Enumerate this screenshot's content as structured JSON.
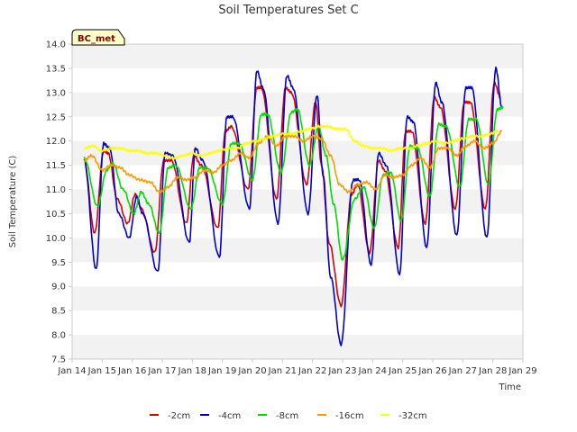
{
  "chart_data": {
    "type": "line",
    "title": "Soil Temperatures Set C",
    "xlabel": "Time",
    "ylabel": "Soil Temperature (C)",
    "ylim": [
      7.5,
      14.0
    ],
    "yticks": [
      7.5,
      8.0,
      8.5,
      9.0,
      9.5,
      10.0,
      10.5,
      11.0,
      11.5,
      12.0,
      12.5,
      13.0,
      13.5,
      14.0
    ],
    "ytick_labels": [
      "7.5",
      "8.0",
      "8.5",
      "9.0",
      "9.5",
      "10.0",
      "10.5",
      "11.0",
      "11.5",
      "12.0",
      "12.5",
      "13.0",
      "13.5",
      "14.0"
    ],
    "xlim": [
      14,
      29
    ],
    "xticks": [
      14,
      15,
      16,
      17,
      18,
      19,
      20,
      21,
      22,
      23,
      24,
      25,
      26,
      27,
      28,
      29
    ],
    "xtick_labels": [
      "Jan 14",
      "Jan 15",
      "Jan 16",
      "Jan 17",
      "Jan 18",
      "Jan 19",
      "Jan 20",
      "Jan 21",
      "Jan 22",
      "Jan 23",
      "Jan 24",
      "Jan 25",
      "Jan 26",
      "Jan 27",
      "Jan 28",
      "Jan 29"
    ],
    "grid": "horizontal bands",
    "legend_position": "bottom",
    "station_label": "BC_met",
    "series": [
      {
        "name": "-2cm",
        "color": "#dd0000",
        "points": [
          [
            14.4,
            11.6
          ],
          [
            14.75,
            10.1
          ],
          [
            15.05,
            11.8
          ],
          [
            15.2,
            11.75
          ],
          [
            15.5,
            10.8
          ],
          [
            15.85,
            10.3
          ],
          [
            16.1,
            10.9
          ],
          [
            16.3,
            10.6
          ],
          [
            16.75,
            9.7
          ],
          [
            17.05,
            11.6
          ],
          [
            17.3,
            11.6
          ],
          [
            17.8,
            10.3
          ],
          [
            18.05,
            11.7
          ],
          [
            18.3,
            11.5
          ],
          [
            18.85,
            10.2
          ],
          [
            19.1,
            12.2
          ],
          [
            19.3,
            12.3
          ],
          [
            19.85,
            11.0
          ],
          [
            20.15,
            13.1
          ],
          [
            20.3,
            13.1
          ],
          [
            20.8,
            10.8
          ],
          [
            21.1,
            13.1
          ],
          [
            21.3,
            13.0
          ],
          [
            21.8,
            11.1
          ],
          [
            22.1,
            12.8
          ],
          [
            22.3,
            11.5
          ],
          [
            22.55,
            9.9
          ],
          [
            22.95,
            8.6
          ],
          [
            23.3,
            10.9
          ],
          [
            23.5,
            11.1
          ],
          [
            23.9,
            9.7
          ],
          [
            24.2,
            11.6
          ],
          [
            24.4,
            11.4
          ],
          [
            24.85,
            9.8
          ],
          [
            25.1,
            12.2
          ],
          [
            25.3,
            12.2
          ],
          [
            25.75,
            10.3
          ],
          [
            26.05,
            12.9
          ],
          [
            26.25,
            12.7
          ],
          [
            26.75,
            10.6
          ],
          [
            27.05,
            12.8
          ],
          [
            27.25,
            12.8
          ],
          [
            27.75,
            10.6
          ],
          [
            28.05,
            13.2
          ],
          [
            28.25,
            12.9
          ]
        ]
      },
      {
        "name": "-4cm",
        "color": "#0000cc",
        "points": [
          [
            14.4,
            11.6
          ],
          [
            14.8,
            9.35
          ],
          [
            15.05,
            11.95
          ],
          [
            15.25,
            11.85
          ],
          [
            15.55,
            10.5
          ],
          [
            15.9,
            10.0
          ],
          [
            16.15,
            10.85
          ],
          [
            16.35,
            10.5
          ],
          [
            16.85,
            9.3
          ],
          [
            17.1,
            11.75
          ],
          [
            17.35,
            11.7
          ],
          [
            17.9,
            9.9
          ],
          [
            18.1,
            11.85
          ],
          [
            18.35,
            11.6
          ],
          [
            18.9,
            9.6
          ],
          [
            19.15,
            12.5
          ],
          [
            19.35,
            12.5
          ],
          [
            19.9,
            10.6
          ],
          [
            20.15,
            13.45
          ],
          [
            20.35,
            13.1
          ],
          [
            20.85,
            10.3
          ],
          [
            21.15,
            13.35
          ],
          [
            21.35,
            13.1
          ],
          [
            21.85,
            10.5
          ],
          [
            22.15,
            12.95
          ],
          [
            22.35,
            11.3
          ],
          [
            22.6,
            9.2
          ],
          [
            22.95,
            7.8
          ],
          [
            23.35,
            11.2
          ],
          [
            23.55,
            11.2
          ],
          [
            23.95,
            9.45
          ],
          [
            24.2,
            11.75
          ],
          [
            24.45,
            11.5
          ],
          [
            24.9,
            9.25
          ],
          [
            25.15,
            12.5
          ],
          [
            25.35,
            12.4
          ],
          [
            25.8,
            9.8
          ],
          [
            26.1,
            13.2
          ],
          [
            26.3,
            12.8
          ],
          [
            26.8,
            10.05
          ],
          [
            27.1,
            13.1
          ],
          [
            27.3,
            13.1
          ],
          [
            27.8,
            10.0
          ],
          [
            28.1,
            13.5
          ],
          [
            28.3,
            12.7
          ]
        ]
      },
      {
        "name": "-8cm",
        "color": "#00dd00",
        "points": [
          [
            14.4,
            11.65
          ],
          [
            14.85,
            10.65
          ],
          [
            15.15,
            11.4
          ],
          [
            15.35,
            11.55
          ],
          [
            15.7,
            11.0
          ],
          [
            16.05,
            10.5
          ],
          [
            16.3,
            10.95
          ],
          [
            16.55,
            10.7
          ],
          [
            16.9,
            10.1
          ],
          [
            17.2,
            11.45
          ],
          [
            17.45,
            11.5
          ],
          [
            17.95,
            10.6
          ],
          [
            18.25,
            11.45
          ],
          [
            18.5,
            11.45
          ],
          [
            19.0,
            10.7
          ],
          [
            19.3,
            11.95
          ],
          [
            19.55,
            11.95
          ],
          [
            20.0,
            11.2
          ],
          [
            20.3,
            12.55
          ],
          [
            20.5,
            12.55
          ],
          [
            20.95,
            11.35
          ],
          [
            21.3,
            12.6
          ],
          [
            21.5,
            12.65
          ],
          [
            21.9,
            11.5
          ],
          [
            22.2,
            12.3
          ],
          [
            22.45,
            11.7
          ],
          [
            22.7,
            10.7
          ],
          [
            23.0,
            9.55
          ],
          [
            23.4,
            10.8
          ],
          [
            23.7,
            11.05
          ],
          [
            24.05,
            10.2
          ],
          [
            24.35,
            11.3
          ],
          [
            24.6,
            11.35
          ],
          [
            24.95,
            10.35
          ],
          [
            25.25,
            11.9
          ],
          [
            25.5,
            11.85
          ],
          [
            25.9,
            10.85
          ],
          [
            26.2,
            12.35
          ],
          [
            26.45,
            12.3
          ],
          [
            26.9,
            11.05
          ],
          [
            27.2,
            12.45
          ],
          [
            27.45,
            12.45
          ],
          [
            27.85,
            11.1
          ],
          [
            28.15,
            12.65
          ],
          [
            28.35,
            12.7
          ]
        ]
      },
      {
        "name": "-16cm",
        "color": "#ff9900",
        "points": [
          [
            14.4,
            11.6
          ],
          [
            14.65,
            11.7
          ],
          [
            15.0,
            11.4
          ],
          [
            15.3,
            11.5
          ],
          [
            15.6,
            11.45
          ],
          [
            15.9,
            11.3
          ],
          [
            16.25,
            11.2
          ],
          [
            16.6,
            11.15
          ],
          [
            16.9,
            10.95
          ],
          [
            17.2,
            11.05
          ],
          [
            17.5,
            11.25
          ],
          [
            17.8,
            11.2
          ],
          [
            18.1,
            11.25
          ],
          [
            18.4,
            11.4
          ],
          [
            18.7,
            11.35
          ],
          [
            19.0,
            11.5
          ],
          [
            19.3,
            11.6
          ],
          [
            19.6,
            11.75
          ],
          [
            19.9,
            11.65
          ],
          [
            20.2,
            11.95
          ],
          [
            20.5,
            12.1
          ],
          [
            20.8,
            11.9
          ],
          [
            21.1,
            12.1
          ],
          [
            21.4,
            12.1
          ],
          [
            21.7,
            12.0
          ],
          [
            22.0,
            12.1
          ],
          [
            22.3,
            12.05
          ],
          [
            22.6,
            11.7
          ],
          [
            22.9,
            11.1
          ],
          [
            23.2,
            10.95
          ],
          [
            23.5,
            11.1
          ],
          [
            23.8,
            11.15
          ],
          [
            24.1,
            11.0
          ],
          [
            24.4,
            11.3
          ],
          [
            24.7,
            11.25
          ],
          [
            25.0,
            11.3
          ],
          [
            25.3,
            11.5
          ],
          [
            25.6,
            11.65
          ],
          [
            25.9,
            11.45
          ],
          [
            26.2,
            11.85
          ],
          [
            26.5,
            11.85
          ],
          [
            26.8,
            11.7
          ],
          [
            27.1,
            11.9
          ],
          [
            27.4,
            12.0
          ],
          [
            27.7,
            11.85
          ],
          [
            28.0,
            11.95
          ],
          [
            28.3,
            12.2
          ]
        ]
      },
      {
        "name": "-32cm",
        "color": "#ffff00",
        "points": [
          [
            14.4,
            11.85
          ],
          [
            14.7,
            11.9
          ],
          [
            15.0,
            11.8
          ],
          [
            15.3,
            11.85
          ],
          [
            15.6,
            11.85
          ],
          [
            15.9,
            11.8
          ],
          [
            16.2,
            11.8
          ],
          [
            16.5,
            11.75
          ],
          [
            16.8,
            11.75
          ],
          [
            17.1,
            11.7
          ],
          [
            17.4,
            11.65
          ],
          [
            17.7,
            11.7
          ],
          [
            18.0,
            11.75
          ],
          [
            18.3,
            11.7
          ],
          [
            18.6,
            11.75
          ],
          [
            18.9,
            11.8
          ],
          [
            19.2,
            11.85
          ],
          [
            19.5,
            11.85
          ],
          [
            19.8,
            11.95
          ],
          [
            20.1,
            12.0
          ],
          [
            20.4,
            12.05
          ],
          [
            20.7,
            12.1
          ],
          [
            21.0,
            12.15
          ],
          [
            21.3,
            12.15
          ],
          [
            21.6,
            12.2
          ],
          [
            21.9,
            12.25
          ],
          [
            22.2,
            12.3
          ],
          [
            22.5,
            12.3
          ],
          [
            22.8,
            12.25
          ],
          [
            23.1,
            12.25
          ],
          [
            23.4,
            12.0
          ],
          [
            23.7,
            11.9
          ],
          [
            24.0,
            11.85
          ],
          [
            24.3,
            11.85
          ],
          [
            24.6,
            11.8
          ],
          [
            24.9,
            11.85
          ],
          [
            25.2,
            11.85
          ],
          [
            25.5,
            11.9
          ],
          [
            25.8,
            11.95
          ],
          [
            26.1,
            12.0
          ],
          [
            26.4,
            11.95
          ],
          [
            26.7,
            12.0
          ],
          [
            27.0,
            12.05
          ],
          [
            27.3,
            12.1
          ],
          [
            27.6,
            12.1
          ],
          [
            27.9,
            12.15
          ],
          [
            28.2,
            12.2
          ]
        ]
      }
    ]
  }
}
